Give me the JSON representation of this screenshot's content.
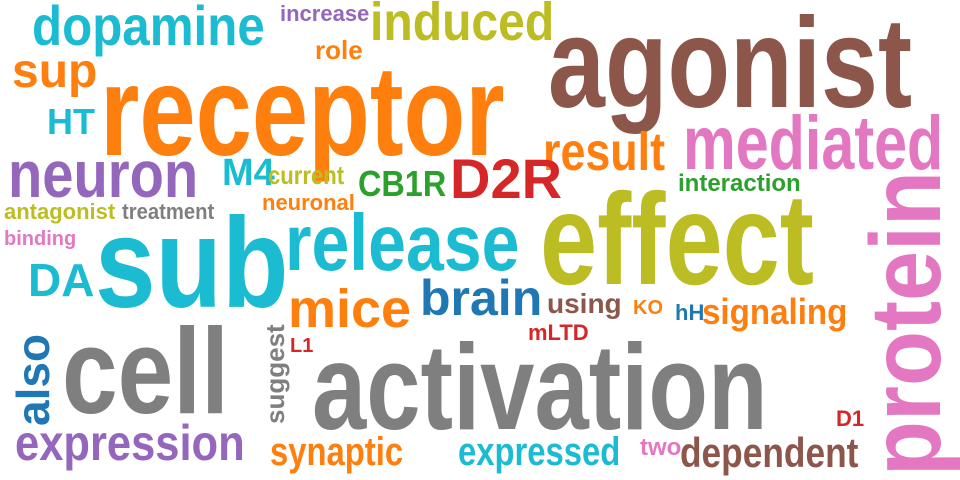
{
  "palette": {
    "teal": "#1bbcd1",
    "orange": "#ff7f0e",
    "olive": "#bcbd22",
    "brown": "#8c564b",
    "purple": "#9467bd",
    "pink": "#e377c2",
    "gray": "#7f7f7f",
    "green": "#2ca02c",
    "red": "#d62728",
    "blue": "#1f77b4"
  },
  "words": [
    {
      "text": "dopamine",
      "color": "teal"
    },
    {
      "text": "increase",
      "color": "purple"
    },
    {
      "text": "induced",
      "color": "olive"
    },
    {
      "text": "role",
      "color": "orange"
    },
    {
      "text": "agonist",
      "color": "brown"
    },
    {
      "text": "sup",
      "color": "orange"
    },
    {
      "text": "receptor",
      "color": "orange"
    },
    {
      "text": "HT",
      "color": "teal"
    },
    {
      "text": "result",
      "color": "orange"
    },
    {
      "text": "mediated",
      "color": "pink"
    },
    {
      "text": "neuron",
      "color": "purple"
    },
    {
      "text": "M4",
      "color": "teal"
    },
    {
      "text": "current",
      "color": "olive"
    },
    {
      "text": "CB1R",
      "color": "green"
    },
    {
      "text": "D2R",
      "color": "red"
    },
    {
      "text": "interaction",
      "color": "green"
    },
    {
      "text": "antagonist",
      "color": "olive"
    },
    {
      "text": "treatment",
      "color": "gray"
    },
    {
      "text": "neuronal",
      "color": "orange"
    },
    {
      "text": "effect",
      "color": "olive"
    },
    {
      "text": "binding",
      "color": "pink"
    },
    {
      "text": "sub",
      "color": "teal"
    },
    {
      "text": "release",
      "color": "teal"
    },
    {
      "text": "protein",
      "color": "pink"
    },
    {
      "text": "DA",
      "color": "teal"
    },
    {
      "text": "brain",
      "color": "blue"
    },
    {
      "text": "mice",
      "color": "orange"
    },
    {
      "text": "using",
      "color": "brown"
    },
    {
      "text": "KO",
      "color": "orange"
    },
    {
      "text": "hH",
      "color": "blue"
    },
    {
      "text": "signaling",
      "color": "orange"
    },
    {
      "text": "mLTD",
      "color": "red"
    },
    {
      "text": "also",
      "color": "blue"
    },
    {
      "text": "cell",
      "color": "gray"
    },
    {
      "text": "suggest",
      "color": "gray"
    },
    {
      "text": "L1",
      "color": "red"
    },
    {
      "text": "activation",
      "color": "gray"
    },
    {
      "text": "D1",
      "color": "red"
    },
    {
      "text": "expression",
      "color": "purple"
    },
    {
      "text": "synaptic",
      "color": "orange"
    },
    {
      "text": "expressed",
      "color": "teal"
    },
    {
      "text": "two",
      "color": "pink"
    },
    {
      "text": "dependent",
      "color": "brown"
    }
  ]
}
